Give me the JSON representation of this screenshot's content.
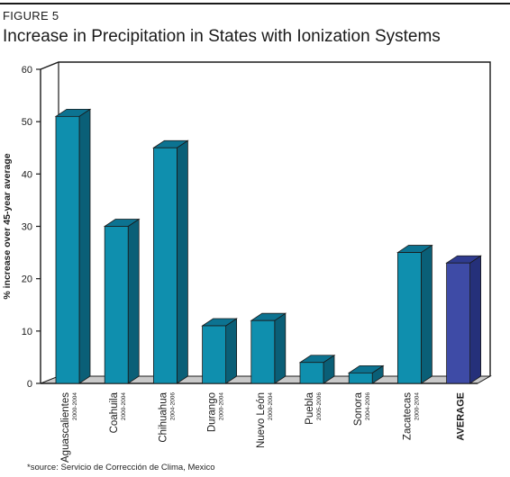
{
  "figure_label": "FIGURE 5",
  "title": "Increase in Precipitation in States with Ionization Systems",
  "source": "*source: Servicio de Corrección de Clima, Mexico",
  "colors": {
    "bar_front": "#0f8fae",
    "bar_side": "#0a5f77",
    "bar_top": "#0c7391",
    "avg_front": "#3e4ba6",
    "avg_side": "#25307a",
    "avg_top": "#2f3b8f",
    "floor": "#c9c9c9"
  },
  "chart_data": {
    "type": "bar",
    "title": "Increase in Precipitation in States with Ionization Systems",
    "ylabel": "% increase over 45-year average",
    "xlabel": "",
    "ylim": [
      0,
      60
    ],
    "yticks": [
      0,
      10,
      20,
      30,
      40,
      50,
      60
    ],
    "grid": false,
    "legend": "none",
    "categories": [
      {
        "name": "Aguascalientes",
        "years": "2000-2004",
        "value": 51
      },
      {
        "name": "Coahuila",
        "years": "2000-2004",
        "value": 30
      },
      {
        "name": "Chihuahua",
        "years": "2004-2006",
        "value": 45
      },
      {
        "name": "Durango",
        "years": "2000-2004",
        "value": 11
      },
      {
        "name": "Nuevo León",
        "years": "2000-2004",
        "value": 12
      },
      {
        "name": "Puebla",
        "years": "2005-2006",
        "value": 4
      },
      {
        "name": "Sonora",
        "years": "2004-2006",
        "value": 2
      },
      {
        "name": "Zacatecas",
        "years": "2000-2004",
        "value": 25
      },
      {
        "name": "AVERAGE",
        "years": "",
        "value": 23,
        "highlight": true
      }
    ]
  }
}
